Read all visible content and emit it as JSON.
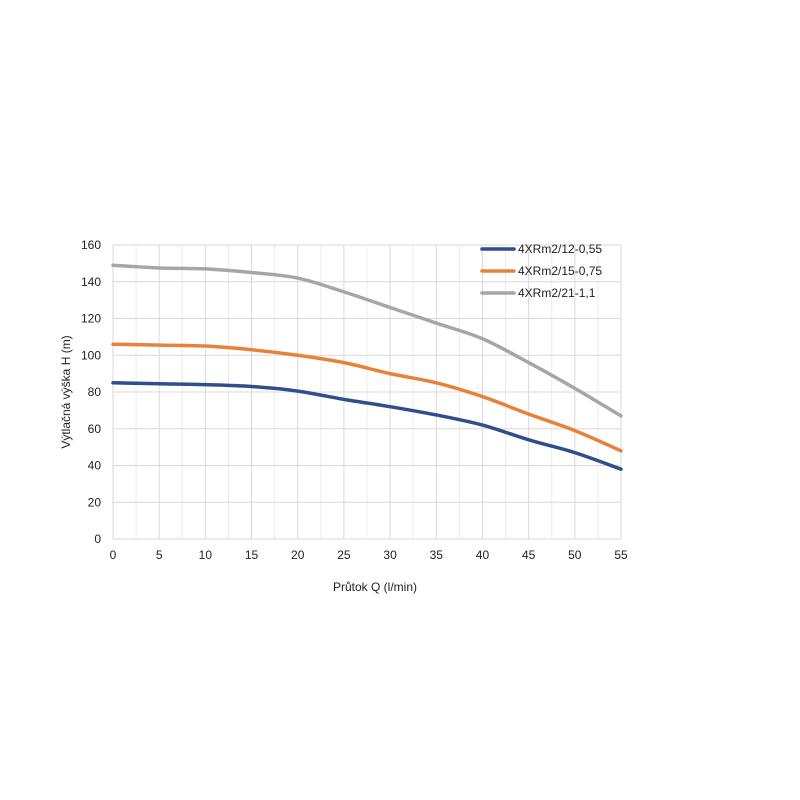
{
  "chart_data": {
    "type": "line",
    "xlabel": "Průtok Q (l/min)",
    "ylabel": "Výtlačná výška H (m)",
    "xlim": [
      0,
      55
    ],
    "ylim": [
      0,
      160
    ],
    "x_ticks": [
      0,
      5,
      10,
      15,
      20,
      25,
      30,
      35,
      40,
      45,
      50,
      55
    ],
    "y_ticks": [
      0,
      20,
      40,
      60,
      80,
      100,
      120,
      140,
      160
    ],
    "grid": true,
    "legend_position": "top-right",
    "x": [
      0,
      5,
      10,
      15,
      20,
      25,
      30,
      35,
      40,
      45,
      50,
      55
    ],
    "series": [
      {
        "name": "4XRm2/12-0,55",
        "color": "#2e4f8c",
        "values": [
          85,
          84.5,
          84,
          83,
          80.5,
          76,
          72,
          67.5,
          62,
          54,
          47,
          38
        ]
      },
      {
        "name": "4XRm2/15-0,75",
        "color": "#e8823a",
        "values": [
          106,
          105.5,
          105,
          103,
          100,
          96,
          90,
          85,
          77.5,
          68,
          59,
          48
        ]
      },
      {
        "name": "4XRm2/21-1,1",
        "color": "#a6a6a6",
        "values": [
          149,
          147.5,
          147,
          145,
          142,
          134.5,
          126,
          117.5,
          109,
          96,
          82,
          67
        ]
      }
    ]
  }
}
